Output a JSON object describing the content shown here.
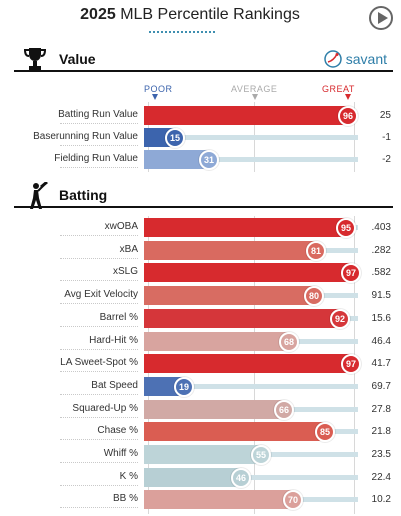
{
  "header": {
    "year": "2025",
    "title": "MLB Percentile Rankings"
  },
  "scale": {
    "poor": "POOR",
    "average": "AVERAGE",
    "great": "GREAT"
  },
  "value_section": {
    "name": "Value",
    "brand": "savant",
    "rows": [
      {
        "label": "Batting Run Value",
        "percentile": 96,
        "value": "25",
        "color": "#d72a2e"
      },
      {
        "label": "Baserunning Run Value",
        "percentile": 15,
        "value": "-1",
        "color": "#3c64ad"
      },
      {
        "label": "Fielding Run Value",
        "percentile": 31,
        "value": "-2",
        "color": "#8ea9d6"
      }
    ]
  },
  "batting_section": {
    "name": "Batting",
    "rows": [
      {
        "label": "xwOBA",
        "percentile": 95,
        "value": ".403",
        "color": "#d72a2e"
      },
      {
        "label": "xBA",
        "percentile": 81,
        "value": ".282",
        "color": "#d96a60"
      },
      {
        "label": "xSLG",
        "percentile": 97,
        "value": ".582",
        "color": "#d72a2e"
      },
      {
        "label": "Avg Exit Velocity",
        "percentile": 80,
        "value": "91.5",
        "color": "#d86c62"
      },
      {
        "label": "Barrel %",
        "percentile": 92,
        "value": "15.6",
        "color": "#d5363a"
      },
      {
        "label": "Hard-Hit %",
        "percentile": 68,
        "value": "46.4",
        "color": "#d8a49f"
      },
      {
        "label": "LA Sweet-Spot %",
        "percentile": 97,
        "value": "41.7",
        "color": "#d72a2e"
      },
      {
        "label": "Bat Speed",
        "percentile": 19,
        "value": "69.7",
        "color": "#4d71b4"
      },
      {
        "label": "Squared-Up %",
        "percentile": 66,
        "value": "27.8",
        "color": "#d1a9a5"
      },
      {
        "label": "Chase %",
        "percentile": 85,
        "value": "21.8",
        "color": "#da5d52"
      },
      {
        "label": "Whiff %",
        "percentile": 55,
        "value": "23.5",
        "color": "#bdd4d8"
      },
      {
        "label": "K %",
        "percentile": 46,
        "value": "22.4",
        "color": "#b7cfd4"
      },
      {
        "label": "BB %",
        "percentile": 70,
        "value": "10.2",
        "color": "#dba09b"
      }
    ]
  },
  "colors": {
    "poor": "#3c64ad",
    "average": "#b0b0b0",
    "great": "#d72a2e",
    "accent": "#2e7ea8"
  }
}
